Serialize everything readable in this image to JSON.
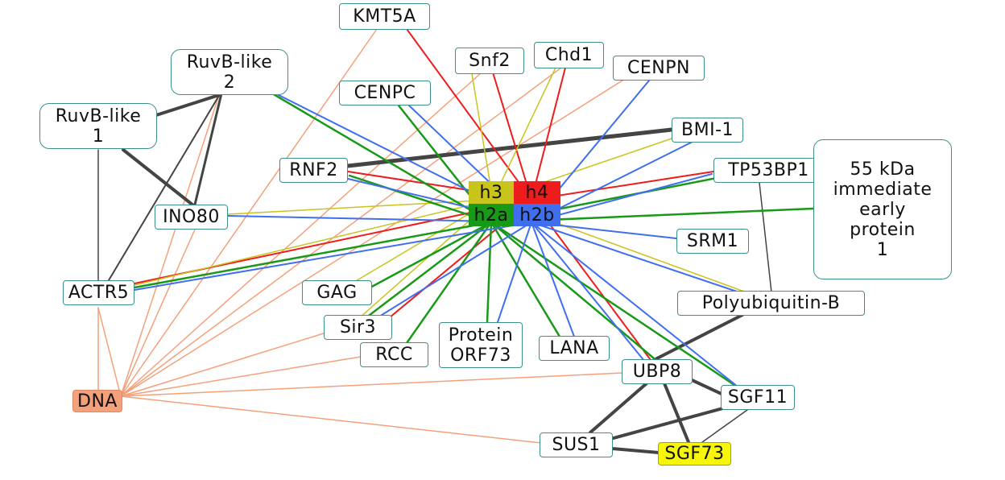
{
  "colors": {
    "red": "#ee1c1c",
    "green": "#189a18",
    "blue": "#3f6fee",
    "olive": "#c9c41c",
    "orange": "#f4a07a",
    "dark": "#444444",
    "node_border": "#3d8f8a"
  },
  "nodes": {
    "kmt5a": "KMT5A",
    "ruvb2": "RuvB-like\n2",
    "ruvb1": "RuvB-like\n1",
    "snf2": "Snf2",
    "chd1": "Chd1",
    "cenpn": "CENPN",
    "cenpc": "CENPC",
    "bmi1": "BMI-1",
    "rnf2": "RNF2",
    "tp53bp1": "TP53BP1",
    "ie55": "55 kDa\nimmediate\nearly\nprotein\n1",
    "ino80": "INO80",
    "srm1": "SRM1",
    "actr5": "ACTR5",
    "gag": "GAG",
    "polyub": "Polyubiquitin-B",
    "sir3": "Sir3",
    "orf73": "Protein\nORF73",
    "lana": "LANA",
    "rcc": "RCC",
    "ubp8": "UBP8",
    "dna": "DNA",
    "sgf11": "SGF11",
    "sus1": "SUS1",
    "sgf73": "SGF73",
    "h3": "h3",
    "h4": "h4",
    "h2a": "h2a",
    "h2b": "h2b"
  }
}
